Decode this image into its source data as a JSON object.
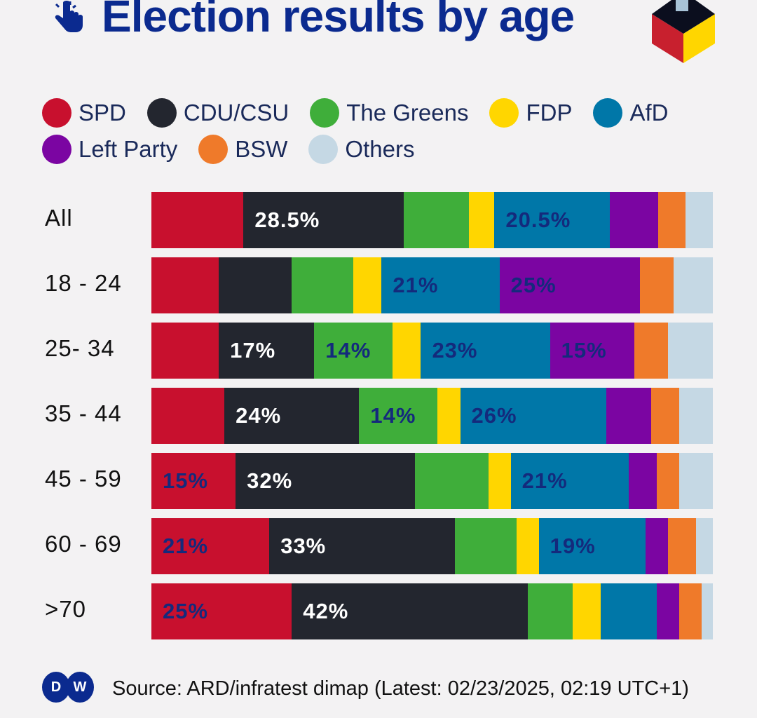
{
  "chart_data": {
    "type": "bar",
    "orientation": "horizontal-stacked-100",
    "title": "Election results by age",
    "categories": [
      "All",
      "18 - 24",
      "25- 34",
      "35 - 44",
      "45 - 59",
      "60 - 69",
      ">70"
    ],
    "series": [
      {
        "name": "SPD",
        "color": "#c8102e",
        "values": [
          16.4,
          12,
          12,
          13,
          15,
          21,
          25
        ],
        "labels": [
          null,
          null,
          null,
          null,
          "15%",
          "21%",
          "25%"
        ]
      },
      {
        "name": "CDU/CSU",
        "color": "#23262f",
        "values": [
          28.5,
          13,
          17,
          24,
          32,
          33,
          42
        ],
        "labels": [
          "28.5%",
          null,
          "17%",
          "24%",
          "32%",
          "33%",
          "42%"
        ]
      },
      {
        "name": "The Greens",
        "color": "#3fae3a",
        "values": [
          11.7,
          11,
          14,
          14,
          13,
          11,
          8
        ],
        "labels": [
          null,
          null,
          "14%",
          "14%",
          null,
          null,
          null
        ]
      },
      {
        "name": "FDP",
        "color": "#ffd600",
        "values": [
          4.5,
          5,
          5,
          4,
          4,
          4,
          5
        ],
        "labels": [
          null,
          null,
          null,
          null,
          null,
          null,
          null
        ]
      },
      {
        "name": "AfD",
        "color": "#0077a8",
        "values": [
          20.5,
          21,
          23,
          26,
          21,
          19,
          10
        ],
        "labels": [
          "20.5%",
          "21%",
          "23%",
          "26%",
          "21%",
          "19%",
          null
        ]
      },
      {
        "name": "Left Party",
        "color": "#7b05a2",
        "values": [
          8.7,
          25,
          15,
          8,
          5,
          4,
          4
        ],
        "labels": [
          null,
          "25%",
          "15%",
          null,
          null,
          null,
          null
        ]
      },
      {
        "name": "BSW",
        "color": "#ef7a2a",
        "values": [
          4.9,
          6,
          6,
          5,
          4,
          5,
          4
        ],
        "labels": [
          null,
          null,
          null,
          null,
          null,
          null,
          null
        ]
      },
      {
        "name": "Others",
        "color": "#c5d8e4",
        "values": [
          4.8,
          7,
          8,
          6,
          6,
          3,
          2
        ],
        "labels": [
          null,
          null,
          null,
          null,
          null,
          null,
          null
        ]
      }
    ],
    "xlim": [
      0,
      100
    ],
    "legend_placement": "top",
    "grid": false
  },
  "label_colors": {
    "dark": "#ffffff",
    "light": "#142a7c"
  },
  "footer": {
    "logo": "DW",
    "source": "Source: ARD/infratest dimap (Latest: 02/23/2025, 02:19 UTC+1)"
  }
}
